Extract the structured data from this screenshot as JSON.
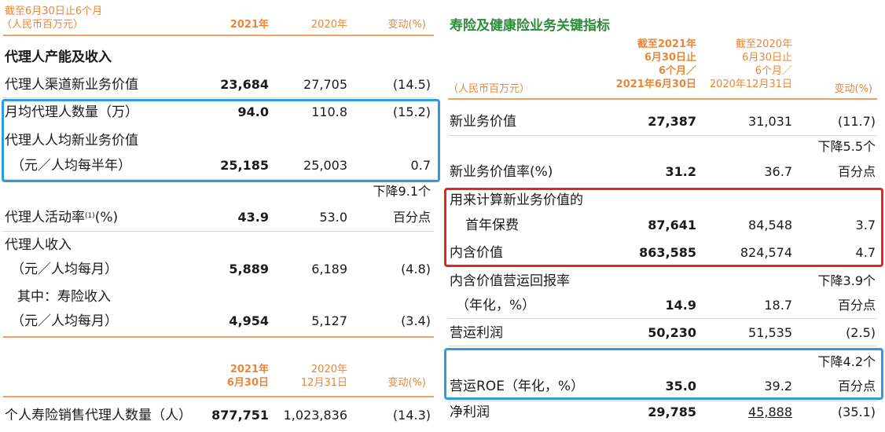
{
  "left": {
    "header": {
      "period_line1": "截至6月30日止6个月",
      "period_line2": "（人民币百万元）",
      "col_2021": "2021年",
      "col_2020": "2020年",
      "col_change": "变动(%)"
    },
    "section_title": "代理人产能及收入",
    "rows": [
      {
        "label": "代理人渠道新业务价值",
        "v2021": "23,684",
        "v2020": "27,705",
        "change": "(14.5)"
      },
      {
        "label": "月均代理人数量（万）",
        "v2021": "94.0",
        "v2020": "110.8",
        "change": "(15.2)"
      },
      {
        "label": "代理人人均新业务价值",
        "label2": "（元／人均每半年）",
        "v2021": "25,185",
        "v2020": "25,003",
        "change": "0.7"
      },
      {
        "label": "代理人活动率",
        "sup": "(1)",
        "label_suffix": "(%)",
        "v2021": "43.9",
        "v2020": "53.0",
        "change_line1": "下降9.1个",
        "change_line2": "百分点"
      },
      {
        "label": "代理人收入",
        "label2": "（元／人均每月）",
        "v2021": "5,889",
        "v2020": "6,189",
        "change": "(4.8)"
      },
      {
        "label": "其中：寿险收入",
        "label2": "（元／人均每月）",
        "v2021": "4,954",
        "v2020": "5,127",
        "change": "(3.4)"
      }
    ],
    "header2": {
      "col_2021_line1": "2021年",
      "col_2021_line2": "6月30日",
      "col_2020_line1": "2020年",
      "col_2020_line2": "12月31日",
      "col_change": "变动(%)"
    },
    "bottom_row": {
      "label": "个人寿险销售代理人数量（人）",
      "v2021": "877,751",
      "v2020": "1,023,836",
      "change": "(14.3)"
    }
  },
  "right": {
    "title": "寿险及健康险业务关键指标",
    "header": {
      "unit": "（人民币百万元）",
      "col_2021_line1": "截至2021年",
      "col_2021_line2": "6月30日止",
      "col_2021_line3": "6个月／",
      "col_2021_line4": "2021年6月30日",
      "col_2020_line1": "截至2020年",
      "col_2020_line2": "6月30日止",
      "col_2020_line3": "6个月／",
      "col_2020_line4": "2020年12月31日",
      "col_change": "变动(%)"
    },
    "rows": [
      {
        "label": "新业务价值",
        "v2021": "27,387",
        "v2020": "31,031",
        "change": "(11.7)"
      },
      {
        "label": "新业务价值率(%)",
        "v2021": "31.2",
        "v2020": "36.7",
        "change_line1": "下降5.5个",
        "change_line2": "百分点"
      },
      {
        "label": "用来计算新业务价值的",
        "label2": "首年保费",
        "v2021": "87,641",
        "v2020": "84,548",
        "change": "3.7"
      },
      {
        "label": "内含价值",
        "v2021": "863,585",
        "v2020": "824,574",
        "change": "4.7"
      },
      {
        "label": "内含价值营运回报率",
        "label2": "（年化，%）",
        "v2021": "14.9",
        "v2020": "18.7",
        "change_line1": "下降3.9个",
        "change_line2": "百分点"
      },
      {
        "label": "营运利润",
        "v2021": "50,230",
        "v2020": "51,535",
        "change": "(2.5)"
      },
      {
        "label": "营运ROE（年化，%）",
        "v2021": "35.0",
        "v2020": "39.2",
        "change_line1": "下降4.2个",
        "change_line2": "百分点"
      },
      {
        "label": "净利润",
        "v2021": "29,785",
        "v2020": "45,888",
        "change": "(35.1)"
      }
    ]
  },
  "colors": {
    "header_orange": "#e8873a",
    "title_green": "#2e8b3a",
    "highlight_blue": "#2e9be0",
    "highlight_red": "#e0281e"
  }
}
